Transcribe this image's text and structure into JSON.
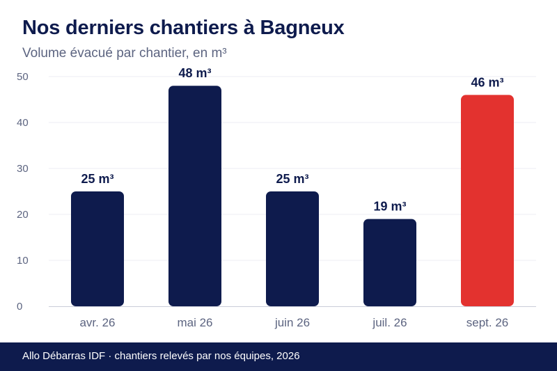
{
  "chart_data": {
    "type": "bar",
    "title": "Nos derniers chantiers à Bagneux",
    "subtitle": "Volume évacué par chantier, en m³",
    "categories": [
      "avr. 26",
      "mai 26",
      "juin 26",
      "juil. 26",
      "sept. 26"
    ],
    "values": [
      25,
      48,
      25,
      19,
      46
    ],
    "data_labels": [
      "25 m³",
      "48 m³",
      "25 m³",
      "19 m³",
      "46 m³"
    ],
    "ylim": [
      0,
      50
    ],
    "yticks": [
      0,
      10,
      20,
      30,
      40,
      50
    ],
    "grid": true,
    "bar_colors": [
      "#0e1b4d",
      "#0e1b4d",
      "#0e1b4d",
      "#0e1b4d",
      "#e3322f"
    ]
  },
  "footer": {
    "text": "Allo Débarras IDF · chantiers relevés par nos équipes, 2026"
  }
}
